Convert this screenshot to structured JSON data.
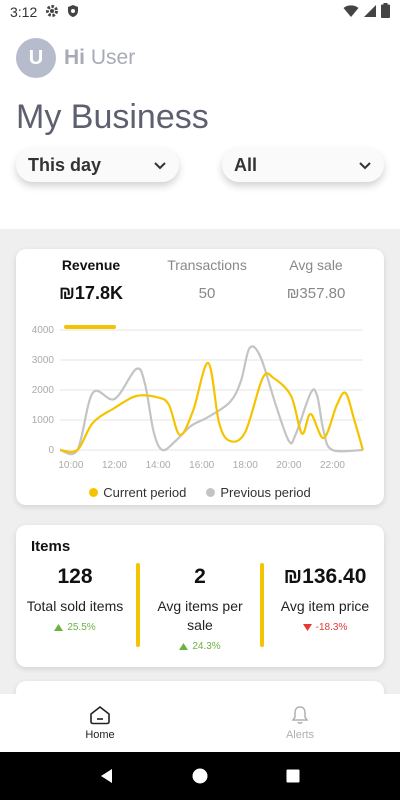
{
  "status_bar": {
    "time": "3:12"
  },
  "header": {
    "avatar_letter": "U",
    "greeting": "Hi",
    "user_name": "User",
    "page_title": "My Business",
    "period_dropdown": "This day",
    "filter_dropdown": "All"
  },
  "stats_card": {
    "tabs": [
      {
        "label": "Revenue",
        "value": "₪17.8K",
        "active": true
      },
      {
        "label": "Transactions",
        "value": "50",
        "active": false
      },
      {
        "label": "Avg sale",
        "value": "₪357.80",
        "active": false
      }
    ]
  },
  "chart_data": {
    "type": "line",
    "x": [
      "10:00",
      "12:00",
      "14:00",
      "16:00",
      "18:00",
      "20:00",
      "22:00"
    ],
    "y_ticks": [
      "0",
      "1000",
      "2000",
      "3000",
      "4000"
    ],
    "ylim": [
      0,
      4000
    ],
    "series": [
      {
        "name": "Current period",
        "color": "#f5c400",
        "points": [
          [
            9.5,
            0
          ],
          [
            10.3,
            0
          ],
          [
            11.0,
            900
          ],
          [
            12.0,
            1400
          ],
          [
            13.0,
            1800
          ],
          [
            14.0,
            1750
          ],
          [
            14.5,
            1500
          ],
          [
            15.0,
            500
          ],
          [
            15.6,
            1300
          ],
          [
            16.3,
            2900
          ],
          [
            16.8,
            900
          ],
          [
            17.3,
            300
          ],
          [
            18.0,
            600
          ],
          [
            18.8,
            2400
          ],
          [
            19.3,
            2400
          ],
          [
            20.1,
            1800
          ],
          [
            20.6,
            550
          ],
          [
            21.0,
            1200
          ],
          [
            21.6,
            400
          ],
          [
            22.2,
            1500
          ],
          [
            22.6,
            1900
          ],
          [
            23.0,
            1000
          ],
          [
            23.4,
            0
          ]
        ]
      },
      {
        "name": "Previous period",
        "color": "#c4c4c4",
        "points": [
          [
            9.5,
            0
          ],
          [
            10.3,
            0
          ],
          [
            11.0,
            1900
          ],
          [
            12.0,
            1700
          ],
          [
            13.0,
            2700
          ],
          [
            13.4,
            2200
          ],
          [
            13.8,
            600
          ],
          [
            14.2,
            0
          ],
          [
            14.8,
            300
          ],
          [
            15.5,
            800
          ],
          [
            16.3,
            1100
          ],
          [
            17.3,
            1600
          ],
          [
            17.8,
            2300
          ],
          [
            18.2,
            3400
          ],
          [
            18.7,
            3100
          ],
          [
            19.4,
            1500
          ],
          [
            20.0,
            300
          ],
          [
            20.3,
            500
          ],
          [
            21.0,
            1900
          ],
          [
            21.3,
            1800
          ],
          [
            21.6,
            600
          ],
          [
            22.0,
            0
          ],
          [
            23.4,
            0
          ]
        ]
      }
    ]
  },
  "items_card": {
    "title": "Items",
    "metrics": [
      {
        "value": "128",
        "label": "Total sold items",
        "delta": "25.5%",
        "trend": "up"
      },
      {
        "value": "2",
        "label": "Avg items per sale",
        "delta": "24.3%",
        "trend": "up"
      },
      {
        "value": "₪136.40",
        "label": "Avg item price",
        "delta": "-18.3%",
        "trend": "down"
      }
    ]
  },
  "colors": {
    "accent": "#f5c400",
    "up": "#6bb33e",
    "down": "#e53935"
  },
  "bottom_nav": [
    {
      "label": "Home",
      "icon": "home-icon",
      "active": true
    },
    {
      "label": "Alerts",
      "icon": "bell-icon",
      "active": false
    }
  ]
}
